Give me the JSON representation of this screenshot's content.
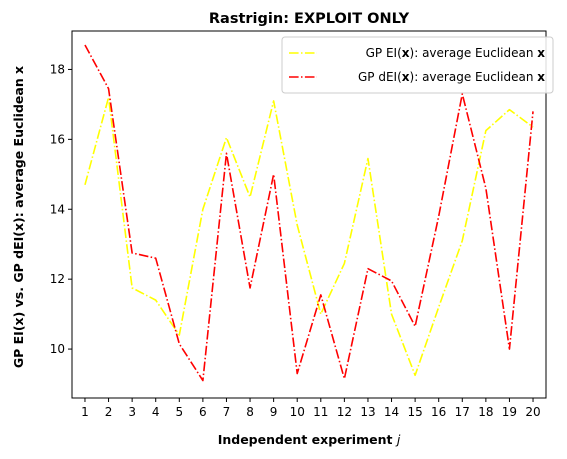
{
  "chart_data": {
    "type": "line",
    "title": "Rastrigin: EXPLOIT ONLY",
    "xlabel": "Independent experiment j",
    "ylabel": "GP EI(x) vs. GP dEI(x): average Euclidean x",
    "x": [
      1,
      2,
      3,
      4,
      5,
      6,
      7,
      8,
      9,
      10,
      11,
      12,
      13,
      14,
      15,
      16,
      17,
      18,
      19,
      20
    ],
    "xlim": [
      0.45,
      20.55
    ],
    "ylim": [
      8.6,
      19.1
    ],
    "yticks": [
      10,
      12,
      14,
      16,
      18
    ],
    "grid": false,
    "legend_position": "top-right",
    "series": [
      {
        "name": "GP EI(x): average Euclidean x",
        "color": "#ffff00",
        "line_style": "dashdot",
        "values": [
          14.7,
          17.2,
          11.75,
          11.4,
          10.4,
          14.0,
          16.05,
          14.35,
          17.1,
          13.55,
          11.0,
          12.45,
          15.45,
          11.0,
          9.25,
          11.2,
          13.1,
          16.25,
          16.85,
          16.35
        ]
      },
      {
        "name": "GP dEI(x): average Euclidean x",
        "color": "#ff0000",
        "line_style": "dashdot",
        "values": [
          18.7,
          17.45,
          12.75,
          12.6,
          10.15,
          9.1,
          15.6,
          11.75,
          15.0,
          9.3,
          11.55,
          9.15,
          12.3,
          11.95,
          10.65,
          13.8,
          17.3,
          14.6,
          10.0,
          16.8
        ]
      }
    ]
  }
}
